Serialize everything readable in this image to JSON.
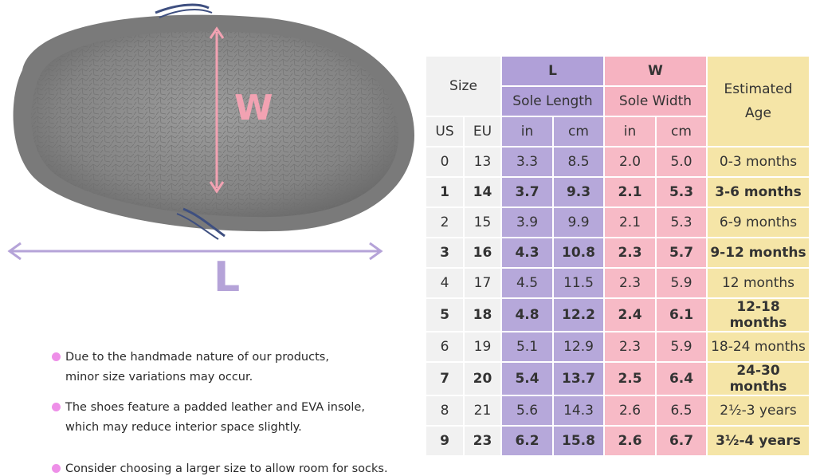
{
  "illustration": {
    "width_label": "W",
    "length_label": "L"
  },
  "notes": [
    "Due to the handmade nature of our products,\nminor size variations may occur.",
    "The shoes feature a padded leather and EVA insole,\nwhich may reduce interior space slightly.",
    "Consider choosing a larger size to allow room for socks."
  ],
  "table": {
    "size_header": "Size",
    "l_header": "L",
    "l_sub": "Sole Length",
    "w_header": "W",
    "w_sub": "Sole Width",
    "age_header": "Estimated\nAge",
    "us_label": "US",
    "eu_label": "EU",
    "in_label": "in",
    "cm_label": "cm",
    "rows": [
      {
        "us": "0",
        "eu": "13",
        "l_in": "3.3",
        "l_cm": "8.5",
        "w_in": "2.0",
        "w_cm": "5.0",
        "age": "0-3 months",
        "bold": false
      },
      {
        "us": "1",
        "eu": "14",
        "l_in": "3.7",
        "l_cm": "9.3",
        "w_in": "2.1",
        "w_cm": "5.3",
        "age": "3-6 months",
        "bold": true
      },
      {
        "us": "2",
        "eu": "15",
        "l_in": "3.9",
        "l_cm": "9.9",
        "w_in": "2.1",
        "w_cm": "5.3",
        "age": "6-9 months",
        "bold": false
      },
      {
        "us": "3",
        "eu": "16",
        "l_in": "4.3",
        "l_cm": "10.8",
        "w_in": "2.3",
        "w_cm": "5.7",
        "age": "9-12 months",
        "bold": true
      },
      {
        "us": "4",
        "eu": "17",
        "l_in": "4.5",
        "l_cm": "11.5",
        "w_in": "2.3",
        "w_cm": "5.9",
        "age": "12 months",
        "bold": false
      },
      {
        "us": "5",
        "eu": "18",
        "l_in": "4.8",
        "l_cm": "12.2",
        "w_in": "2.4",
        "w_cm": "6.1",
        "age": "12-18 months",
        "bold": true
      },
      {
        "us": "6",
        "eu": "19",
        "l_in": "5.1",
        "l_cm": "12.9",
        "w_in": "2.3",
        "w_cm": "5.9",
        "age": "18-24 months",
        "bold": false
      },
      {
        "us": "7",
        "eu": "20",
        "l_in": "5.4",
        "l_cm": "13.7",
        "w_in": "2.5",
        "w_cm": "6.4",
        "age": "24-30 months",
        "bold": true
      },
      {
        "us": "8",
        "eu": "21",
        "l_in": "5.6",
        "l_cm": "14.3",
        "w_in": "2.6",
        "w_cm": "6.5",
        "age": "2½-3 years",
        "bold": false
      },
      {
        "us": "9",
        "eu": "23",
        "l_in": "6.2",
        "l_cm": "15.8",
        "w_in": "2.6",
        "w_cm": "6.7",
        "age": "3½-4 years",
        "bold": true
      }
    ]
  },
  "colors": {
    "size_bg": "#f1f1f1",
    "length_bg": "#b6a8da",
    "width_bg": "#f7bac6",
    "age_bg": "#f5e5a7",
    "bullet": "#ee8fe8",
    "width_arrow": "#f2a2b2",
    "length_arrow": "#b5a3d8"
  }
}
